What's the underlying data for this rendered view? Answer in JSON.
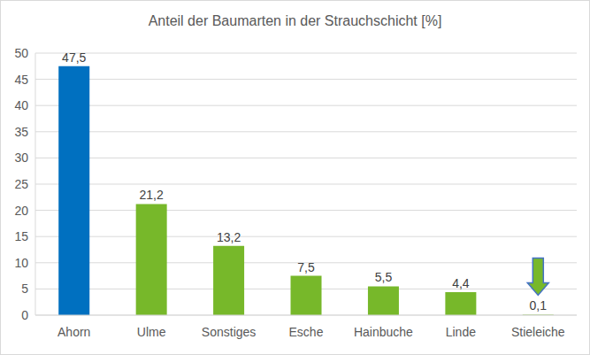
{
  "chart_data": {
    "type": "bar",
    "title": "Anteil der Baumarten in der Strauchschicht [%]",
    "categories": [
      "Ahorn",
      "Ulme",
      "Sonstiges",
      "Esche",
      "Hainbuche",
      "Linde",
      "Stieleiche"
    ],
    "values": [
      47.5,
      21.2,
      13.2,
      7.5,
      5.5,
      4.4,
      0.1
    ],
    "value_labels": [
      "47,5",
      "21,2",
      "13,2",
      "7,5",
      "5,5",
      "4,4",
      "0,1"
    ],
    "colors": [
      "#0070c0",
      "#77b82a",
      "#77b82a",
      "#77b82a",
      "#77b82a",
      "#77b82a",
      "#77b82a"
    ],
    "ylim": [
      0,
      50
    ],
    "yticks": [
      0,
      5,
      10,
      15,
      20,
      25,
      30,
      35,
      40,
      45,
      50
    ],
    "grid": true,
    "data_labels": true
  }
}
